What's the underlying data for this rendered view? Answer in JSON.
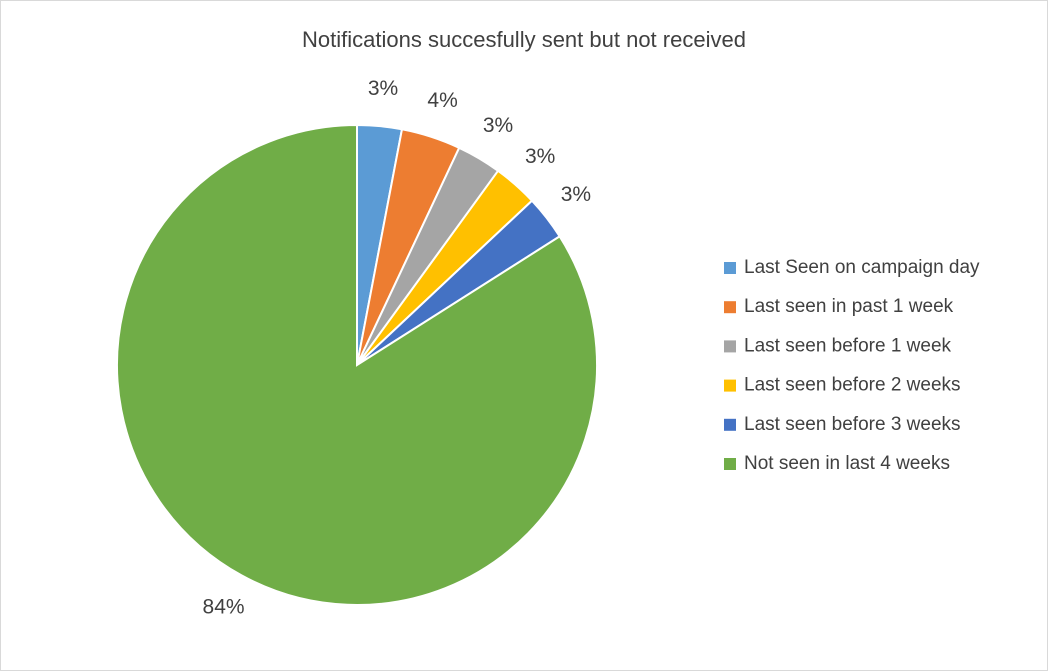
{
  "chart_data": {
    "type": "pie",
    "title": "Notifications succesfully sent but not received",
    "categories": [
      "Last Seen on campaign day",
      "Last seen in past 1 week",
      "Last seen before 1 week",
      "Last seen before 2 weeks",
      "Last seen before 3 weeks",
      "Not seen in last 4 weeks"
    ],
    "values": [
      3,
      4,
      3,
      3,
      3,
      84
    ],
    "value_labels": [
      "3%",
      "4%",
      "3%",
      "3%",
      "3%",
      "84%"
    ],
    "colors": [
      "#5b9bd5",
      "#ed7d31",
      "#a5a5a5",
      "#ffc000",
      "#4472c4",
      "#70ad47"
    ],
    "legend": "right"
  }
}
